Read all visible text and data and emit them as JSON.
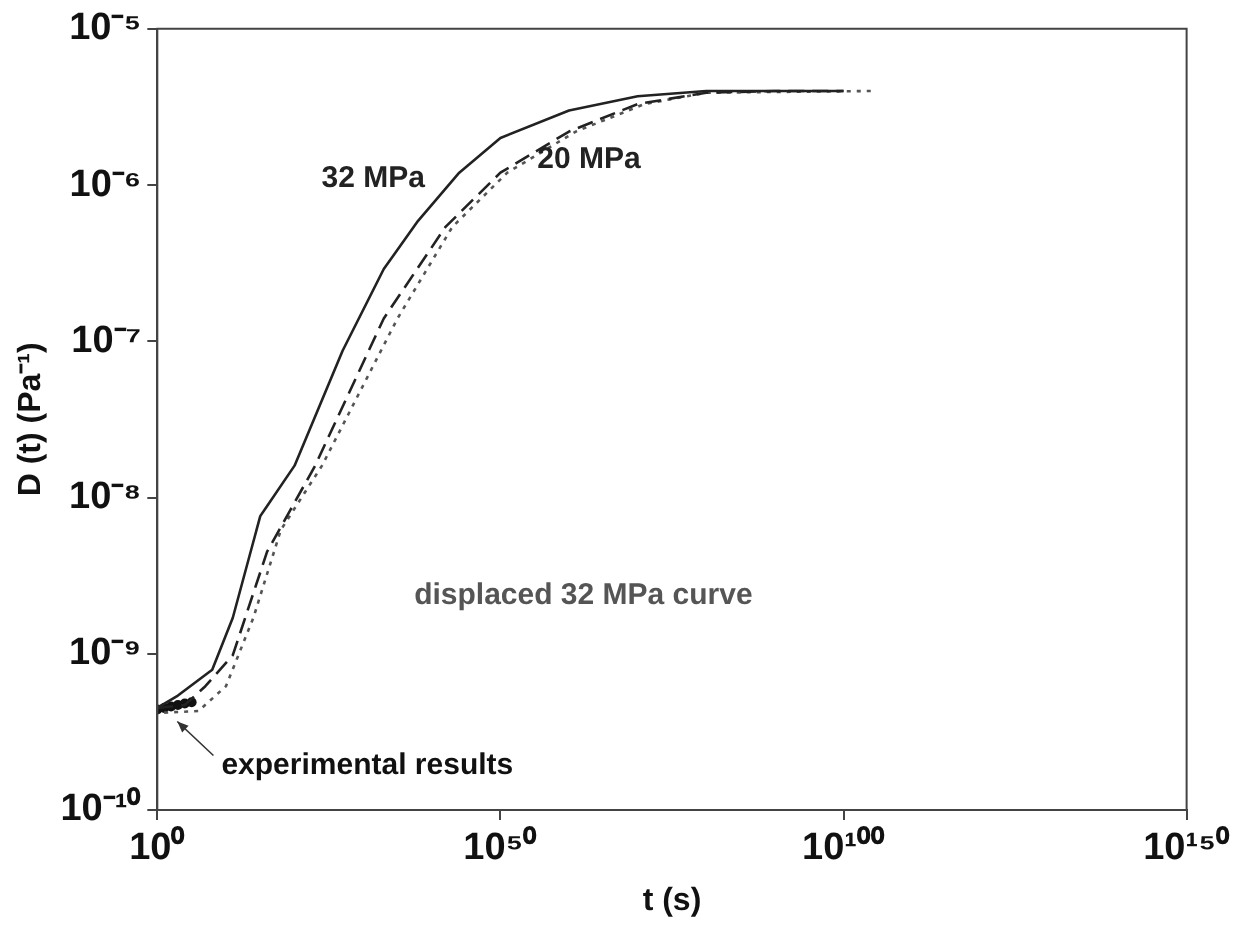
{
  "chart_data": {
    "type": "line",
    "xlabel": "t (s)",
    "ylabel": "D (t) (Pa⁻¹)",
    "log": "xy",
    "xlim": [
      1,
      1e+150
    ],
    "xticks": [
      {
        "value": 1,
        "label": "10⁰"
      },
      {
        "value": 1e+50,
        "label": "10⁵⁰"
      },
      {
        "value": 1e+100,
        "label": "10¹⁰⁰"
      },
      {
        "value": 1e+150,
        "label": "10¹⁵⁰"
      }
    ],
    "ylim": [
      1e-10,
      1e-05
    ],
    "yticks": [
      {
        "value": 1e-10,
        "label": "10⁻¹⁰"
      },
      {
        "value": 1e-09,
        "label": "10⁻⁹"
      },
      {
        "value": 1e-08,
        "label": "10⁻⁸"
      },
      {
        "value": 1e-07,
        "label": "10⁻⁷"
      },
      {
        "value": 1e-06,
        "label": "10⁻⁶"
      },
      {
        "value": 1e-05,
        "label": "10⁻⁵"
      }
    ],
    "grid": false,
    "legend": false,
    "series": [
      {
        "name": "32 MPa",
        "color": "#222222",
        "line_style": "solid",
        "x": [
          1,
          1000.0,
          100000000.0,
          100000000000.0,
          1000000000000000.0,
          1e+20,
          1e+27,
          1e+33,
          1e+38,
          1e+44,
          1e+50,
          1e+60,
          1e+70,
          1e+80,
          1e+100
        ],
        "values": [
          4.5e-10,
          5.4e-10,
          7.9e-10,
          1.7e-09,
          7.6e-09,
          1.6e-08,
          8.7e-08,
          2.9e-07,
          5.9e-07,
          1.2e-06,
          2e-06,
          3e-06,
          3.7e-06,
          4e-06,
          4e-06
        ]
      },
      {
        "name": "20 MPa",
        "color": "#222222",
        "line_style": "dashed",
        "x": [
          1,
          10000.0,
          10000000.0,
          100000000000.0,
          1e+16,
          1e+23,
          1e+33,
          1e+42,
          1e+50,
          1e+60,
          1e+70,
          1e+80,
          1e+90,
          1e+100
        ],
        "values": [
          4.5e-10,
          4.7e-10,
          6.2e-10,
          9.8e-10,
          4.5e-09,
          1.6e-08,
          1.4e-07,
          5.4e-07,
          1.2e-06,
          2.2e-06,
          3.3e-06,
          3.9e-06,
          4e-06,
          4e-06
        ]
      },
      {
        "name": "displaced 32 MPa curve",
        "color": "#555555",
        "line_style": "dotted",
        "x": [
          10.0,
          1000000.0,
          10000000000.0,
          100000000000000.0,
          1e+18,
          1e+24,
          1e+35,
          1e+43,
          1e+51,
          1e+61,
          1e+71,
          1e+80,
          1e+104
        ],
        "values": [
          4.2e-10,
          4.3e-10,
          6.2e-10,
          1.7e-09,
          6.2e-09,
          1.6e-08,
          1.4e-07,
          5.4e-07,
          1.2e-06,
          2.2e-06,
          3.3e-06,
          3.9e-06,
          4e-06
        ]
      },
      {
        "name": "experimental results",
        "type": "scatter",
        "color": "#111111",
        "marker": "circle",
        "x": [
          1,
          10.0,
          100.0,
          1000.0,
          10000.0,
          100000.0
        ],
        "values": [
          4.4e-10,
          4.5e-10,
          4.6e-10,
          4.7e-10,
          4.8e-10,
          4.9e-10
        ]
      }
    ]
  }
}
